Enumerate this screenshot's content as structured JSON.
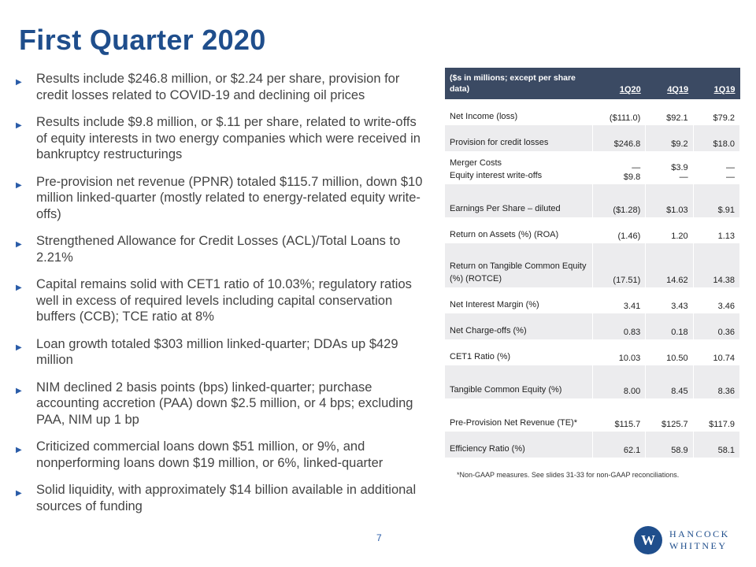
{
  "title": "First Quarter 2020",
  "bullets": [
    "Results include $246.8 million, or $2.24 per share, provision for credit losses related to COVID-19 and declining oil prices",
    "Results include $9.8 million, or $.11 per share, related to write-offs of equity interests in two energy companies which were received in bankruptcy restructurings",
    "Pre-provision net revenue (PPNR) totaled $115.7 million, down $10 million linked-quarter (mostly related to energy-related equity write-offs)",
    "Strengthened Allowance for Credit Losses (ACL)/Total Loans to 2.21%",
    "Capital remains solid with CET1 ratio of 10.03%; regulatory ratios well in excess of required levels including capital conservation buffers (CCB); TCE ratio at 8%",
    "Loan growth totaled $303 million linked-quarter; DDAs up $429 million",
    "NIM declined 2 basis points (bps) linked-quarter; purchase accounting accretion (PAA) down $2.5 million, or 4 bps; excluding PAA, NIM up 1 bp",
    "Criticized commercial loans down $51 million, or 9%, and nonperforming loans down $19 million, or 6%, linked-quarter",
    "Solid liquidity, with approximately $14 billion available in additional sources of funding"
  ],
  "table": {
    "header_label": "($s in millions; except per share data)",
    "columns": [
      "1Q20",
      "4Q19",
      "1Q19"
    ],
    "rows": [
      {
        "label": "Net Income (loss)",
        "values": [
          "($111.0)",
          "$92.1",
          "$79.2"
        ]
      },
      {
        "label": "Provision for credit losses",
        "values": [
          "$246.8",
          "$9.2",
          "$18.0"
        ]
      },
      {
        "label": "Merger Costs\nEquity interest write-offs",
        "values": [
          "—\n$9.8",
          "$3.9\n—",
          "—\n—"
        ]
      },
      {
        "label": "Earnings Per Share – diluted",
        "values": [
          "($1.28)",
          "$1.03",
          "$.91"
        ]
      },
      {
        "label": "Return on Assets (%) (ROA)",
        "values": [
          "(1.46)",
          "1.20",
          "1.13"
        ]
      },
      {
        "label": "Return on Tangible Common Equity (%) (ROTCE)",
        "values": [
          "(17.51)",
          "14.62",
          "14.38"
        ]
      },
      {
        "label": "Net Interest Margin (%)",
        "values": [
          "3.41",
          "3.43",
          "3.46"
        ]
      },
      {
        "label": "Net Charge-offs (%)",
        "values": [
          "0.83",
          "0.18",
          "0.36"
        ]
      },
      {
        "label": "CET1 Ratio (%)",
        "values": [
          "10.03",
          "10.50",
          "10.74"
        ]
      },
      {
        "label": "Tangible Common Equity (%)",
        "values": [
          "8.00",
          "8.45",
          "8.36"
        ]
      },
      {
        "label": "Pre-Provision Net Revenue (TE)*",
        "values": [
          "$115.7",
          "$125.7",
          "$117.9"
        ]
      },
      {
        "label": "Efficiency Ratio (%)",
        "values": [
          "62.1",
          "58.9",
          "58.1"
        ]
      }
    ]
  },
  "footnote": "*Non-GAAP measures. See slides 31-33 for non-GAAP reconciliations.",
  "page_number": "7",
  "logo": {
    "mark": "W",
    "line1": "HANCOCK",
    "line2": "WHITNEY"
  },
  "colors": {
    "title": "#1f4e8c",
    "header_bg": "#3b4a63",
    "bullet": "#2a5ca8"
  }
}
